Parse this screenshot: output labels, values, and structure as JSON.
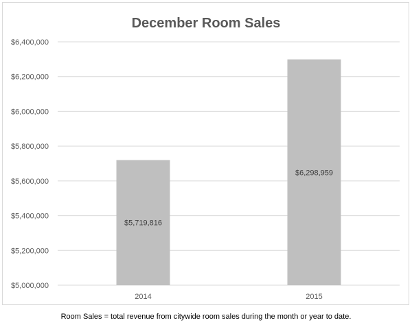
{
  "chart_data": {
    "type": "bar",
    "title": "December Room Sales",
    "categories": [
      "2014",
      "2015"
    ],
    "values": [
      5719816,
      6298959
    ],
    "data_labels": [
      "$5,719,816",
      "$6,298,959"
    ],
    "ylim": [
      5000000,
      6400000
    ],
    "y_ticks": [
      5000000,
      5200000,
      5400000,
      5600000,
      5800000,
      6000000,
      6200000,
      6400000
    ],
    "y_tick_labels": [
      "$5,000,000",
      "$5,200,000",
      "$5,400,000",
      "$5,600,000",
      "$5,800,000",
      "$6,000,000",
      "$6,200,000",
      "$6,400,000"
    ],
    "grid": true,
    "legend": "none",
    "bar_color": "#bfbfbf"
  },
  "footnote": "Room Sales = total revenue from citywide room sales during the month or year to date."
}
